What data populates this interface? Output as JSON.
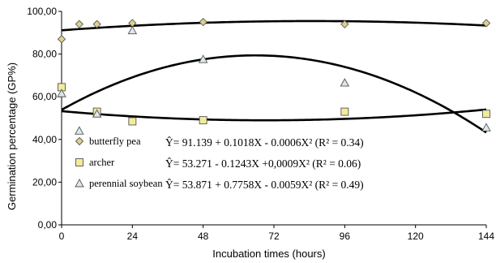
{
  "chart_data": {
    "type": "scatter",
    "xlabel": "Incubation times (hours)",
    "ylabel": "Germination percentage (GP%)",
    "xlim": [
      0,
      144
    ],
    "ylim": [
      0,
      100
    ],
    "x_ticks": [
      0,
      24,
      48,
      72,
      96,
      120,
      144
    ],
    "y_ticks": [
      0,
      20,
      40,
      60,
      80,
      100
    ],
    "y_tick_labels": [
      "0,00",
      "20,00",
      "40,00",
      "60,00",
      "80,00",
      "100,00"
    ],
    "grid": false,
    "legend": "lower-left inside",
    "series": [
      {
        "name": "butterfly pea",
        "marker": "diamond",
        "marker_color": "#dcd28c",
        "x": [
          0,
          6,
          12,
          24,
          48,
          96,
          144
        ],
        "y": [
          87,
          94,
          94,
          94.5,
          95,
          94,
          94.5
        ],
        "fit": {
          "a": 91.139,
          "b": 0.1018,
          "c": -0.0006
        },
        "equation": "Ŷ= 91.139 + 0.1018X  - 0.0006X² (R² = 0.34)"
      },
      {
        "name": "archer",
        "marker": "square",
        "marker_color": "#f2eb9a",
        "x": [
          0,
          12,
          24,
          48,
          96,
          144
        ],
        "y": [
          64.5,
          53,
          48.5,
          49,
          53,
          52
        ],
        "fit": {
          "a": 53.271,
          "b": -0.1243,
          "c": 0.0009
        },
        "equation": "Ŷ= 53.271  - 0.1243X +0,0009X² (R² = 0.06)"
      },
      {
        "name": "perennial soybean",
        "marker": "triangle",
        "marker_color": "#dde8e8",
        "x": [
          0,
          6,
          12,
          24,
          48,
          96,
          144
        ],
        "y": [
          61.5,
          44,
          52,
          91,
          77.5,
          66.5,
          45.5
        ],
        "fit": {
          "a": 53.871,
          "b": 0.7758,
          "c": -0.0059
        },
        "equation": "Ŷ= 53.871 + 0.7758X - 0.0059X² (R² = 0.49)"
      }
    ]
  }
}
